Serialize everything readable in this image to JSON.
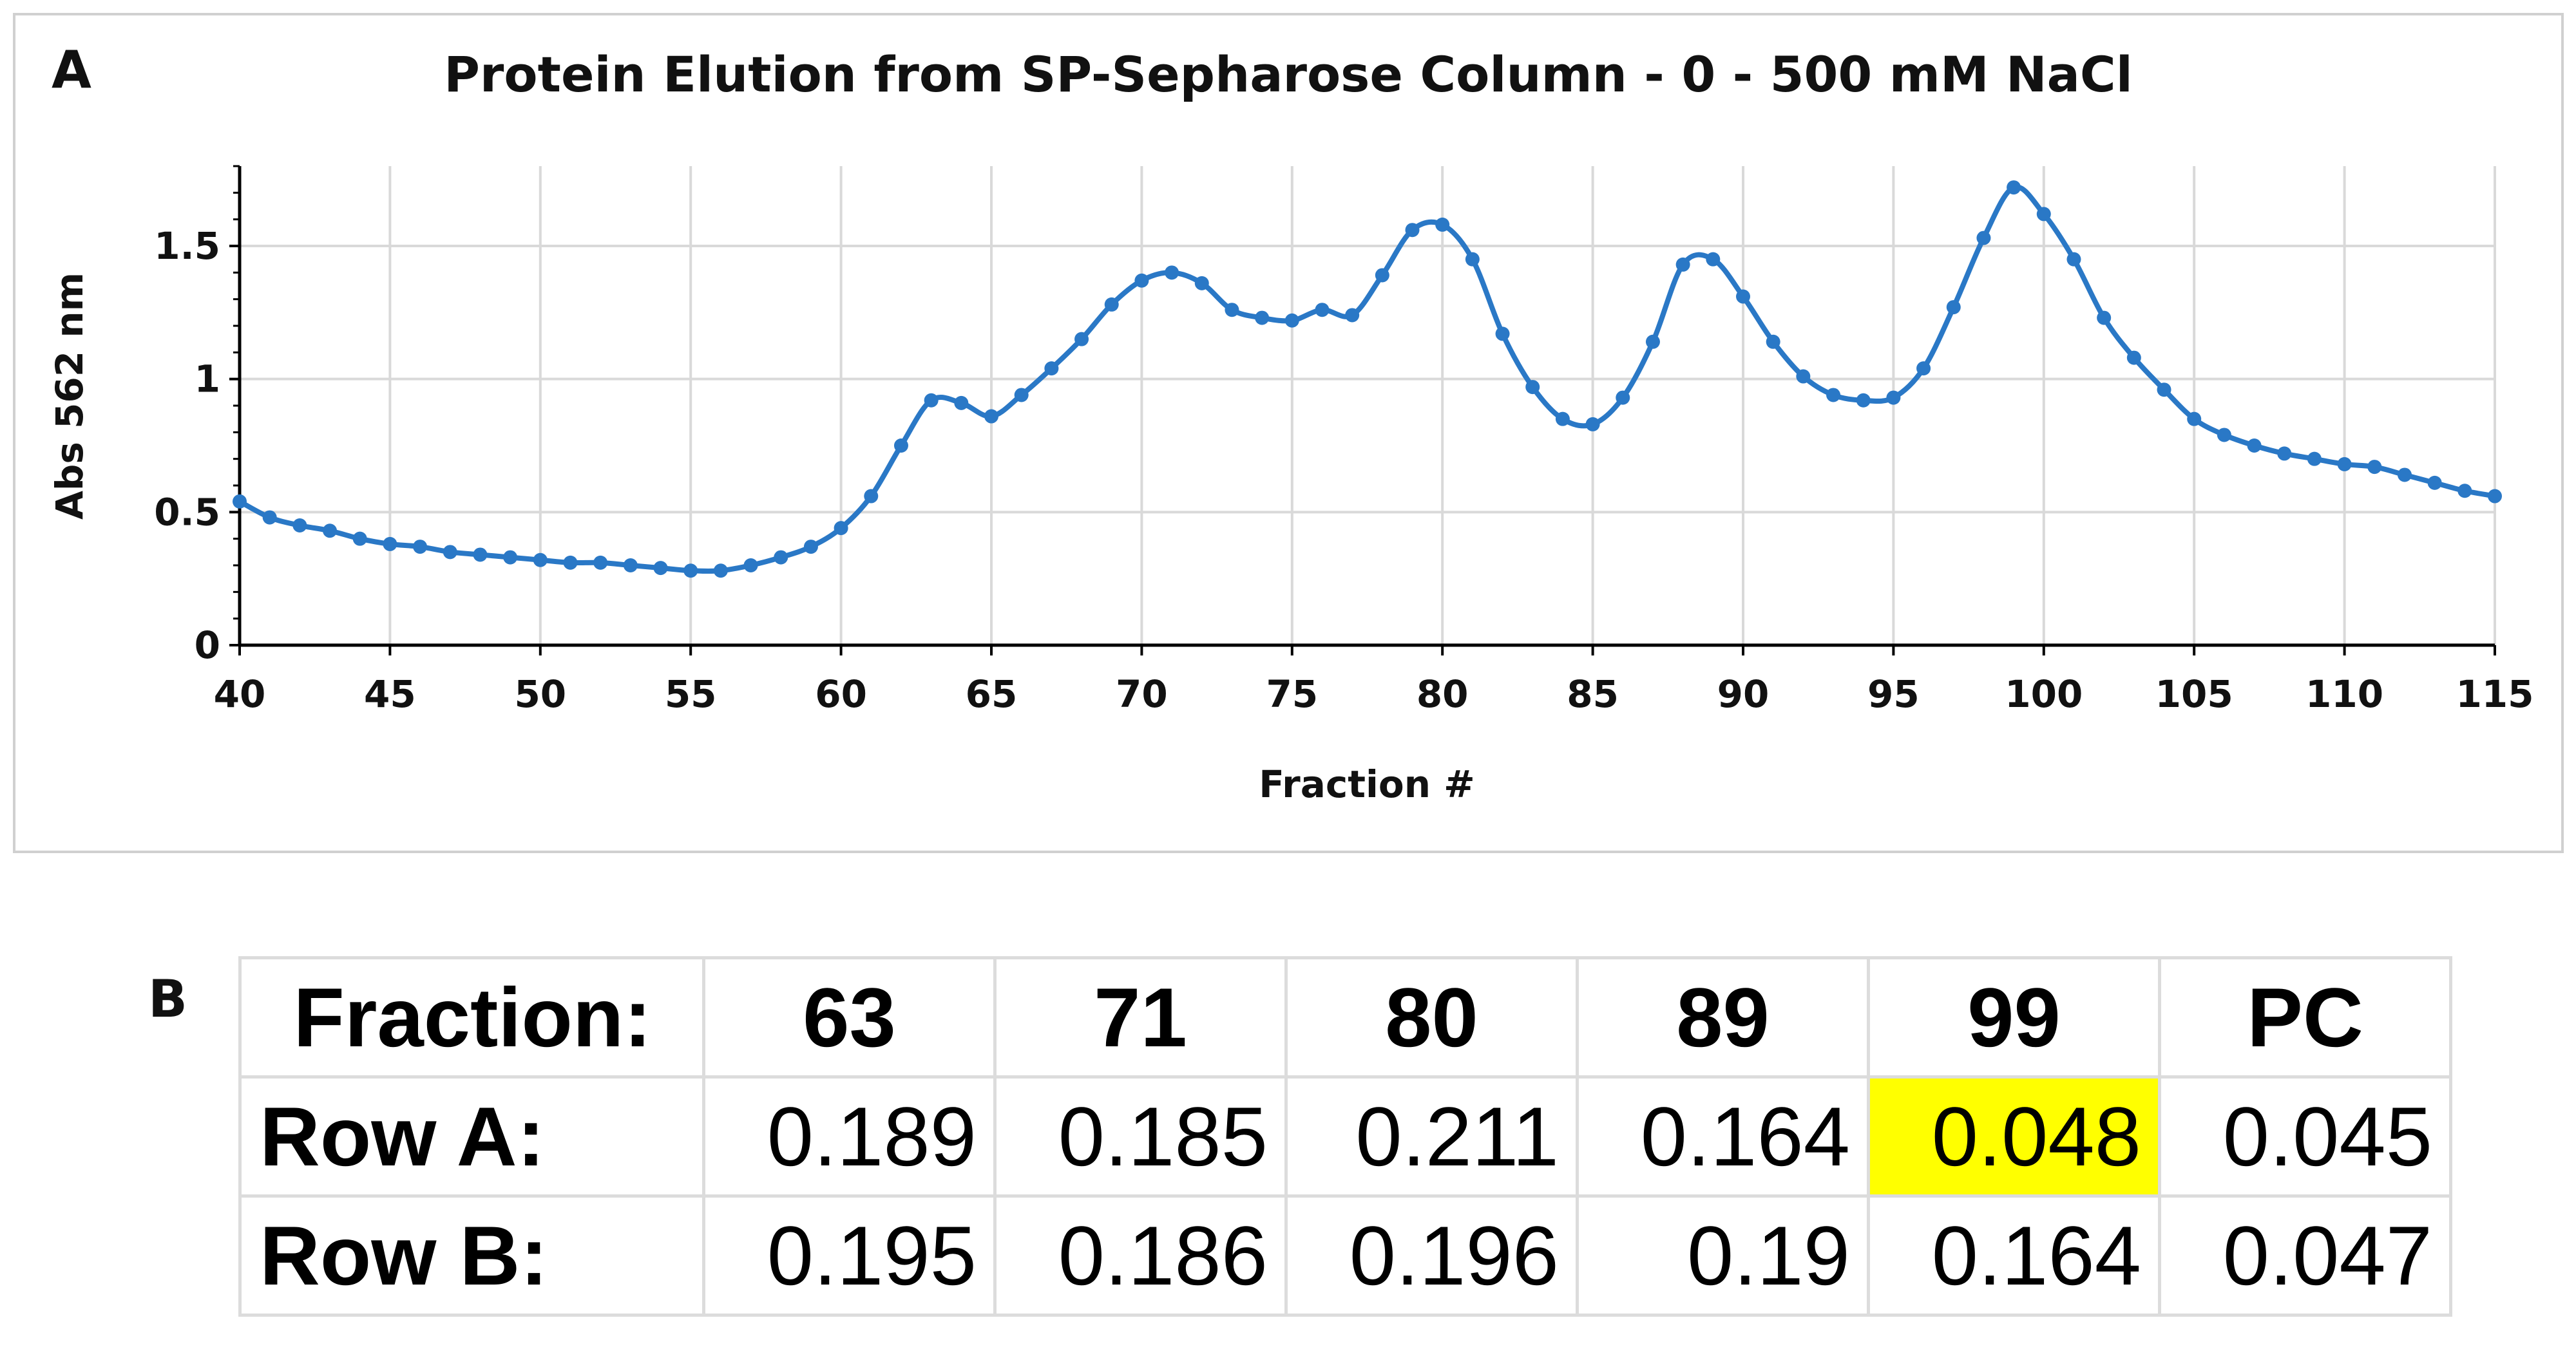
{
  "colors": {
    "series": "#2a78c6",
    "grid": "#d9d9d9",
    "axis": "#000000",
    "highlight": "#ffff00"
  },
  "panel_a": {
    "label": "A"
  },
  "panel_b": {
    "label": "B"
  },
  "chart_data": {
    "type": "line",
    "title": "Protein Elution from SP-Sepharose Column - 0 - 500 mM NaCl",
    "xlabel": "Fraction #",
    "ylabel": "Abs 562 nm",
    "xlim": [
      40,
      115
    ],
    "ylim": [
      0,
      1.8
    ],
    "xticks": [
      40,
      45,
      50,
      55,
      60,
      65,
      70,
      75,
      80,
      85,
      90,
      95,
      100,
      105,
      110,
      115
    ],
    "yticks": [
      0,
      0.5,
      1,
      1.5
    ],
    "ytick_labels": [
      "0",
      "0.5",
      "1",
      "1.5"
    ],
    "grid": true,
    "series": [
      {
        "name": "Abs 562 nm",
        "x": [
          40,
          41,
          42,
          43,
          44,
          45,
          46,
          47,
          48,
          49,
          50,
          51,
          52,
          53,
          54,
          55,
          56,
          57,
          58,
          59,
          60,
          61,
          62,
          63,
          64,
          65,
          66,
          67,
          68,
          69,
          70,
          71,
          72,
          73,
          74,
          75,
          76,
          77,
          78,
          79,
          80,
          81,
          82,
          83,
          84,
          85,
          86,
          87,
          88,
          89,
          90,
          91,
          92,
          93,
          94,
          95,
          96,
          97,
          98,
          99,
          100,
          101,
          102,
          103,
          104,
          105,
          106,
          107,
          108,
          109,
          110,
          111,
          112,
          113,
          114,
          115
        ],
        "y": [
          0.54,
          0.48,
          0.45,
          0.43,
          0.4,
          0.38,
          0.37,
          0.35,
          0.34,
          0.33,
          0.32,
          0.31,
          0.31,
          0.3,
          0.29,
          0.28,
          0.28,
          0.3,
          0.33,
          0.37,
          0.44,
          0.56,
          0.75,
          0.92,
          0.91,
          0.86,
          0.94,
          1.04,
          1.15,
          1.28,
          1.37,
          1.4,
          1.36,
          1.26,
          1.23,
          1.22,
          1.26,
          1.24,
          1.39,
          1.56,
          1.58,
          1.45,
          1.17,
          0.97,
          0.85,
          0.83,
          0.93,
          1.14,
          1.43,
          1.45,
          1.31,
          1.14,
          1.01,
          0.94,
          0.92,
          0.93,
          1.04,
          1.27,
          1.53,
          1.72,
          1.62,
          1.45,
          1.23,
          1.08,
          0.96,
          0.85,
          0.79,
          0.75,
          0.72,
          0.7,
          0.68,
          0.67,
          0.64,
          0.61,
          0.58,
          0.56
        ]
      }
    ]
  },
  "table": {
    "header": {
      "label": "Fraction:",
      "cols": [
        "63",
        "71",
        "80",
        "89",
        "99",
        "PC"
      ]
    },
    "row_a": {
      "label": "Row A:",
      "cells": [
        "0.189",
        "0.185",
        "0.211",
        "0.164",
        "0.048",
        "0.045"
      ]
    },
    "row_b": {
      "label": "Row B:",
      "cells": [
        "0.195",
        "0.186",
        "0.196",
        "0.19",
        "0.164",
        "0.047"
      ]
    }
  }
}
